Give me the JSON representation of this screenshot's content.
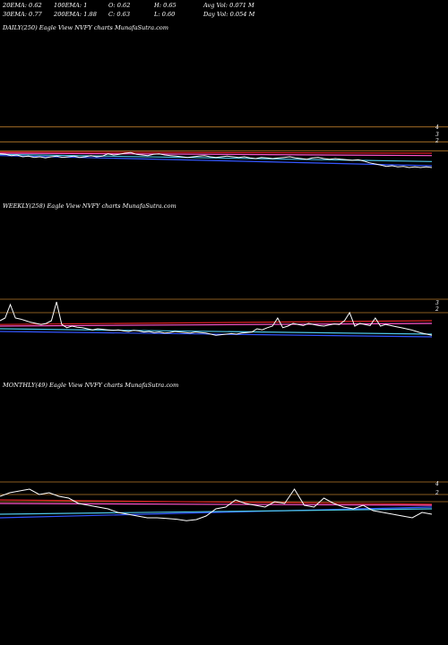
{
  "stats": {
    "row1": [
      "20EMA: 0.62",
      "100EMA: 1",
      "O: 0.62",
      "H: 0.65",
      "Avg Vol: 0.071  M"
    ],
    "row2": [
      "30EMA: 0.77",
      "200EMA: 1.88",
      "C: 0.63",
      "L: 0.60",
      "Day Vol: 0.054  M"
    ]
  },
  "colors": {
    "price": "#ffffff",
    "ema_blue": "#3355ff",
    "ema_cyan": "#4fc8e8",
    "ema_pink": "#ff55cc",
    "ema_red": "#dd2222",
    "level_line": "#b87a2a",
    "axis_label": "#ffffff"
  },
  "chart_data": [
    {
      "type": "line",
      "title": "DAILY(250) Eagle   View  NVFY charts MunafaSutra.com",
      "right_tick_labels": [
        "4",
        "3",
        "2"
      ],
      "price_series": [
        0.85,
        0.84,
        0.82,
        0.83,
        0.8,
        0.81,
        0.79,
        0.8,
        0.78,
        0.8,
        0.81,
        0.79,
        0.8,
        0.81,
        0.79,
        0.8,
        0.82,
        0.8,
        0.81,
        0.85,
        0.83,
        0.84,
        0.86,
        0.87,
        0.84,
        0.83,
        0.82,
        0.84,
        0.85,
        0.83,
        0.82,
        0.81,
        0.8,
        0.79,
        0.8,
        0.81,
        0.82,
        0.8,
        0.79,
        0.8,
        0.81,
        0.8,
        0.79,
        0.8,
        0.78,
        0.77,
        0.79,
        0.78,
        0.77,
        0.78,
        0.79,
        0.8,
        0.78,
        0.77,
        0.76,
        0.78,
        0.79,
        0.77,
        0.76,
        0.77,
        0.76,
        0.75,
        0.74,
        0.75,
        0.73,
        0.7,
        0.68,
        0.66,
        0.64,
        0.65,
        0.63,
        0.64,
        0.62,
        0.63,
        0.62,
        0.63,
        0.62
      ],
      "ema_lines": [
        {
          "name": "ema_blue",
          "start": 0.82,
          "end": 0.65
        },
        {
          "name": "ema_cyan",
          "start": 0.84,
          "end": 0.72
        },
        {
          "name": "ema_pink",
          "start": 0.86,
          "end": 0.82
        },
        {
          "name": "ema_red",
          "start": 0.88,
          "end": 0.86
        }
      ],
      "level_lines": [
        1.3,
        1.05,
        0.9
      ]
    },
    {
      "type": "line",
      "title": "WEEKLY(258) Eagle   View  NVFY charts MunafaSutra.com",
      "right_tick_labels": [
        "3",
        "2"
      ],
      "price_series": [
        1.05,
        1.1,
        1.35,
        1.1,
        1.08,
        1.05,
        1.02,
        1.0,
        0.98,
        1.0,
        1.05,
        1.4,
        0.98,
        0.92,
        0.95,
        0.93,
        0.92,
        0.9,
        0.88,
        0.9,
        0.89,
        0.88,
        0.87,
        0.88,
        0.86,
        0.85,
        0.87,
        0.86,
        0.84,
        0.85,
        0.83,
        0.84,
        0.82,
        0.83,
        0.85,
        0.84,
        0.83,
        0.82,
        0.84,
        0.83,
        0.82,
        0.8,
        0.78,
        0.79,
        0.8,
        0.81,
        0.8,
        0.82,
        0.83,
        0.84,
        0.9,
        0.88,
        0.92,
        0.95,
        1.1,
        0.92,
        0.95,
        1.0,
        0.98,
        0.96,
        1.0,
        0.98,
        0.96,
        0.95,
        0.97,
        0.99,
        0.98,
        1.05,
        1.2,
        0.95,
        1.0,
        0.98,
        0.96,
        1.1,
        0.95,
        0.98,
        0.96,
        0.94,
        0.92,
        0.9,
        0.88,
        0.85,
        0.82,
        0.8,
        0.78
      ],
      "ema_lines": [
        {
          "name": "ema_blue",
          "start": 0.85,
          "end": 0.75
        },
        {
          "name": "ema_cyan",
          "start": 0.9,
          "end": 0.8
        },
        {
          "name": "ema_pink",
          "start": 0.95,
          "end": 1.0
        },
        {
          "name": "ema_red",
          "start": 0.98,
          "end": 1.05
        }
      ],
      "level_lines": [
        1.45,
        1.2
      ]
    },
    {
      "type": "line",
      "title": "MONTHLY(49) Eagle   View  NVFY charts MunafaSutra.com",
      "right_tick_labels": [
        "4",
        "2"
      ],
      "price_series": [
        1.4,
        1.5,
        1.55,
        1.6,
        1.45,
        1.5,
        1.4,
        1.35,
        1.2,
        1.15,
        1.1,
        1.05,
        0.95,
        0.9,
        0.85,
        0.8,
        0.8,
        0.78,
        0.76,
        0.72,
        0.75,
        0.85,
        1.05,
        1.1,
        1.3,
        1.2,
        1.15,
        1.1,
        1.25,
        1.2,
        1.6,
        1.15,
        1.1,
        1.35,
        1.2,
        1.1,
        1.05,
        1.15,
        1.0,
        0.95,
        0.9,
        0.85,
        0.8,
        0.95,
        0.9
      ],
      "ema_lines": [
        {
          "name": "ema_blue",
          "start": 0.8,
          "end": 1.1
        },
        {
          "name": "ema_cyan",
          "start": 0.9,
          "end": 1.05
        },
        {
          "name": "ema_pink",
          "start": 1.2,
          "end": 1.15
        },
        {
          "name": "ema_red",
          "start": 1.3,
          "end": 1.18
        }
      ],
      "level_lines": [
        1.8,
        1.45,
        1.25
      ]
    }
  ]
}
